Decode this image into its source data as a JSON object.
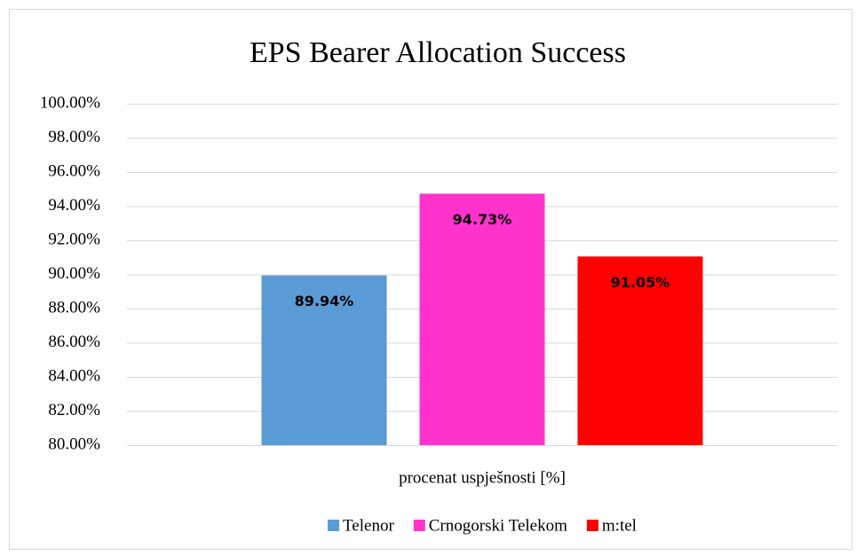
{
  "chart_data": {
    "type": "bar",
    "title": "EPS Bearer Allocation Success",
    "categories": [
      "procenat uspješnosti [%]"
    ],
    "series": [
      {
        "name": "Telenor",
        "color": "#5b9bd5",
        "values": [
          89.94
        ],
        "value_labels": [
          "89.94%"
        ]
      },
      {
        "name": "Crnogorski Telekom",
        "color": "#ff33cc",
        "values": [
          94.73
        ],
        "value_labels": [
          "94.73%"
        ]
      },
      {
        "name": "m:tel",
        "color": "#ff0000",
        "values": [
          91.05
        ],
        "value_labels": [
          "91.05%"
        ]
      }
    ],
    "ylim": [
      80,
      100
    ],
    "yticks": [
      {
        "value": 80,
        "label": "80.00%"
      },
      {
        "value": 82,
        "label": "82.00%"
      },
      {
        "value": 84,
        "label": "84.00%"
      },
      {
        "value": 86,
        "label": "86.00%"
      },
      {
        "value": 88,
        "label": "88.00%"
      },
      {
        "value": 90,
        "label": "90.00%"
      },
      {
        "value": 92,
        "label": "92.00%"
      },
      {
        "value": 94,
        "label": "94.00%"
      },
      {
        "value": 96,
        "label": "96.00%"
      },
      {
        "value": 98,
        "label": "98.00%"
      },
      {
        "value": 100,
        "label": "100.00%"
      }
    ],
    "grid": true,
    "legend": "bottom"
  }
}
